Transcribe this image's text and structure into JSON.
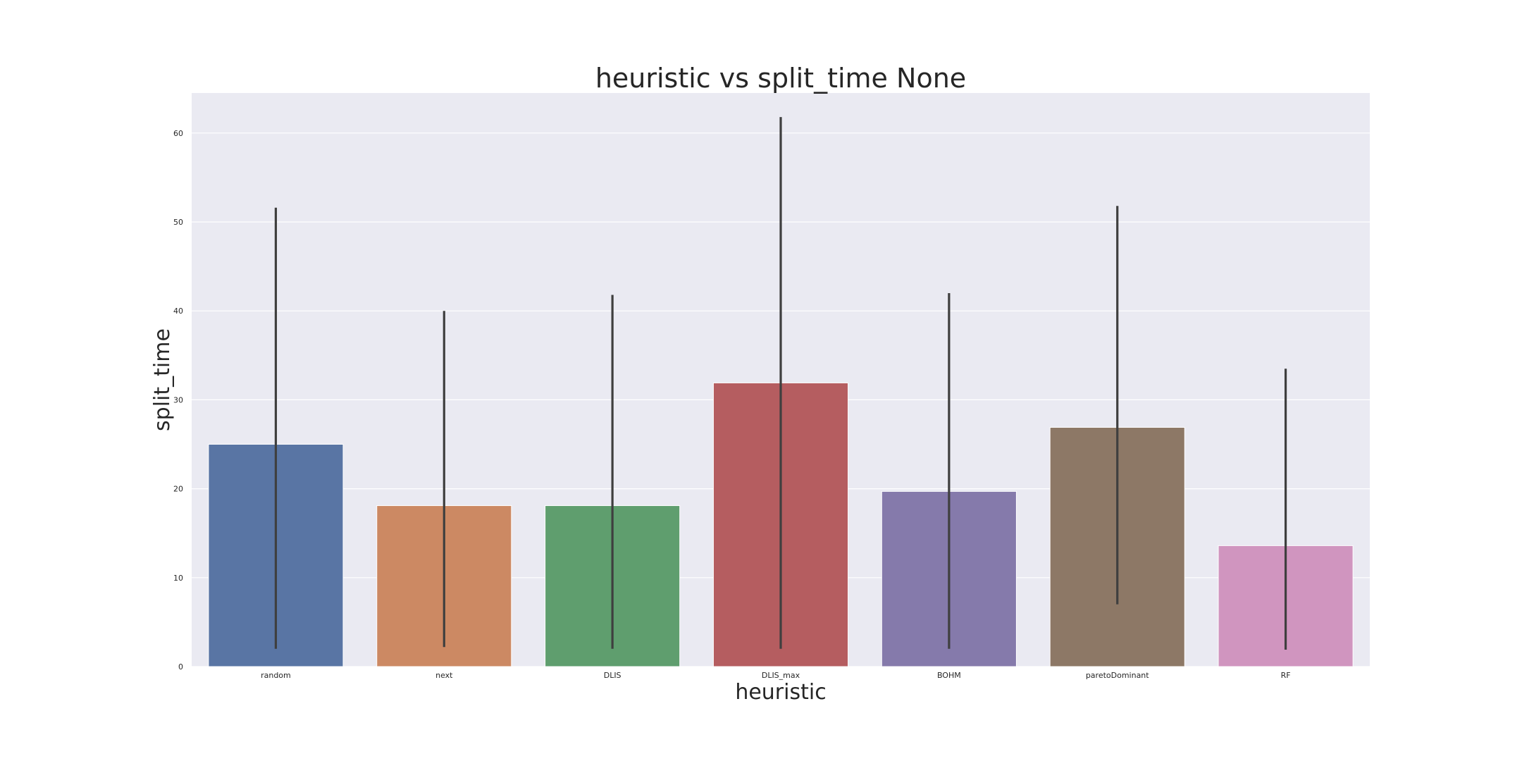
{
  "chart_data": {
    "type": "bar",
    "title": "heuristic vs split_time None",
    "xlabel": "heuristic",
    "ylabel": "split_time",
    "categories": [
      "random",
      "next",
      "DLIS",
      "DLIS_max",
      "BOHM",
      "paretoDominant",
      "RF"
    ],
    "values": [
      25.0,
      18.1,
      18.1,
      31.9,
      19.7,
      26.9,
      13.6
    ],
    "error_low": [
      2.0,
      2.2,
      2.0,
      2.0,
      2.0,
      7.0,
      1.9
    ],
    "error_high": [
      51.6,
      40.0,
      41.8,
      61.8,
      42.0,
      51.8,
      33.5
    ],
    "colors": [
      "#5975a4",
      "#cc8963",
      "#5f9e6e",
      "#b55d60",
      "#857aab",
      "#8d7866",
      "#d095bf"
    ],
    "ylim": [
      0,
      64.5
    ],
    "yticks": [
      0,
      10,
      20,
      30,
      40,
      50,
      60
    ],
    "grid": true,
    "background": "#eaeaf2",
    "errorbar_color": "#3f3f3f"
  }
}
